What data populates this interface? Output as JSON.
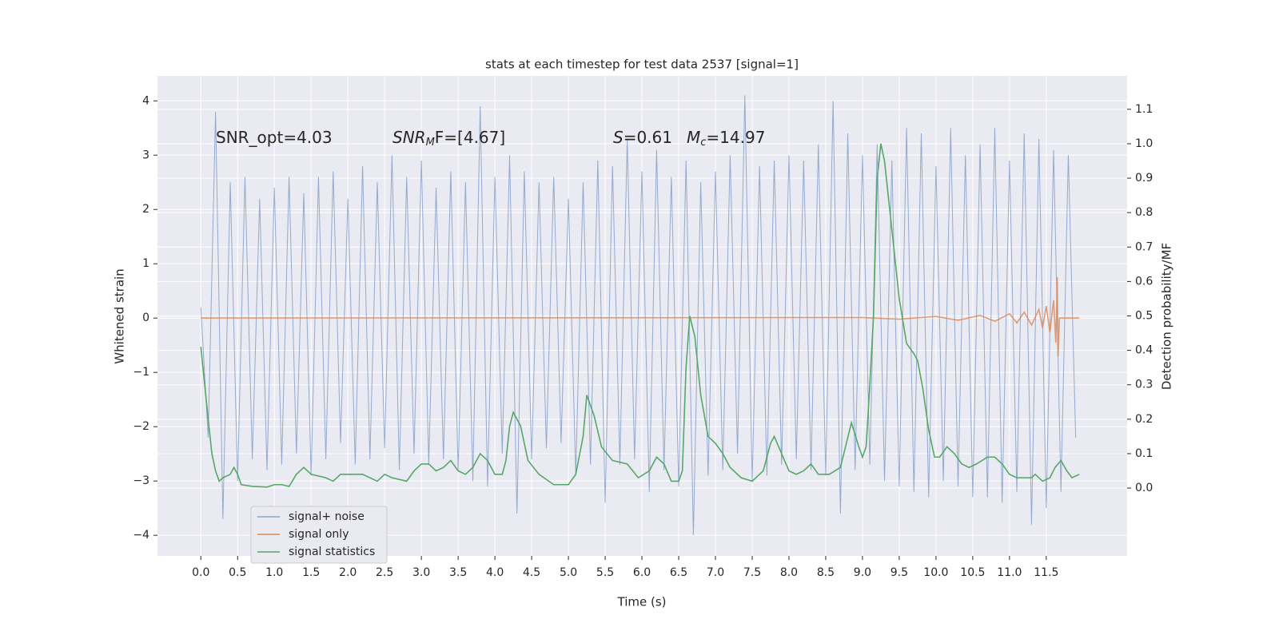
{
  "chart_data": {
    "type": "line",
    "title": "stats at each timestep for test data 2537 [signal=1]",
    "xlabel": "Time (s)",
    "ylabel": "Whitened strain",
    "y2label": "Detection probability/MF",
    "annotations": [
      {
        "text": "SNR_opt=4.03"
      },
      {
        "main": "SNR",
        "sub": "M",
        "rest": "F=[4.67]"
      },
      {
        "main": "S",
        "rest": "=0.61"
      },
      {
        "main": "M",
        "sub": "c",
        "rest": "=14.97"
      }
    ],
    "xlim": [
      -0.59,
      12.6
    ],
    "ylim": [
      -4.38,
      4.46
    ],
    "y2lim": [
      -0.197,
      1.197
    ],
    "xticks": [
      {
        "value": 0,
        "label": "0.0"
      },
      0.5,
      {
        "value": 1,
        "label": "1.0"
      },
      1.5,
      {
        "value": 2,
        "label": "2.0"
      },
      2.5,
      {
        "value": 3,
        "label": "3.0"
      },
      3.5,
      {
        "value": 4,
        "label": "4.0"
      },
      4.5,
      {
        "value": 5,
        "label": "5.0"
      },
      5.5,
      {
        "value": 6,
        "label": "6.0"
      },
      6.5,
      {
        "value": 7,
        "label": "7.0"
      },
      7.5,
      {
        "value": 8,
        "label": "8.0"
      },
      8.5,
      {
        "value": 9,
        "label": "9.0"
      },
      9.5,
      {
        "value": 10,
        "label": "10.0"
      },
      10.5,
      {
        "value": 11,
        "label": "11.0"
      },
      11.5
    ],
    "yticks": [
      {
        "value": -4,
        "label": "−4"
      },
      {
        "value": -3,
        "label": "−3"
      },
      {
        "value": -2,
        "label": "−2"
      },
      {
        "value": -1,
        "label": "−1"
      },
      0,
      1,
      2,
      3,
      4
    ],
    "y2ticks": [
      {
        "value": 0,
        "label": "0.0"
      },
      0.1,
      0.2,
      0.3,
      0.4,
      0.5,
      0.6,
      0.7,
      0.8,
      0.9,
      {
        "value": 1,
        "label": "1.0"
      },
      1.1
    ],
    "grid": true,
    "legend": "lower left",
    "series": [
      {
        "name": "signal+ noise",
        "color": "#4c72b0",
        "x": [
          0,
          0.1,
          0.2,
          0.3,
          0.4,
          0.5,
          0.6,
          0.7,
          0.8,
          0.9,
          1,
          1.1,
          1.2,
          1.3,
          1.4,
          1.5,
          1.6,
          1.7,
          1.8,
          1.9,
          2,
          2.1,
          2.2,
          2.3,
          2.4,
          2.5,
          2.6,
          2.7,
          2.8,
          2.9,
          3,
          3.1,
          3.2,
          3.3,
          3.4,
          3.5,
          3.6,
          3.7,
          3.8,
          3.9,
          4,
          4.1,
          4.2,
          4.3,
          4.4,
          4.5,
          4.6,
          4.7,
          4.8,
          4.9,
          5,
          5.1,
          5.2,
          5.3,
          5.4,
          5.5,
          5.6,
          5.7,
          5.8,
          5.9,
          6,
          6.1,
          6.2,
          6.3,
          6.4,
          6.5,
          6.6,
          6.7,
          6.8,
          6.9,
          7,
          7.1,
          7.2,
          7.3,
          7.4,
          7.5,
          7.6,
          7.7,
          7.8,
          7.9,
          8,
          8.1,
          8.2,
          8.3,
          8.4,
          8.5,
          8.6,
          8.7,
          8.8,
          8.9,
          9,
          9.1,
          9.2,
          9.3,
          9.4,
          9.5,
          9.6,
          9.7,
          9.8,
          9.9,
          10,
          10.1,
          10.2,
          10.3,
          10.4,
          10.5,
          10.6,
          10.7,
          10.8,
          10.9,
          11,
          11.1,
          11.2,
          11.3,
          11.4,
          11.5,
          11.6,
          11.7,
          11.8,
          11.9
        ],
        "values": [
          0.2,
          -2.2,
          3.8,
          -3.7,
          2.5,
          -3.0,
          2.6,
          -2.6,
          2.2,
          -2.8,
          2.4,
          -2.7,
          2.6,
          -2.5,
          2.3,
          -2.9,
          2.6,
          -2.6,
          2.7,
          -2.3,
          2.2,
          -2.7,
          2.8,
          -2.6,
          2.5,
          -2.4,
          3.0,
          -2.8,
          2.6,
          -2.5,
          2.9,
          -2.7,
          2.4,
          -2.6,
          2.7,
          -2.8,
          2.5,
          -3.0,
          3.9,
          -3.1,
          2.6,
          -2.5,
          3.0,
          -3.6,
          2.7,
          -2.6,
          2.5,
          -2.4,
          2.6,
          -2.3,
          2.2,
          -2.9,
          2.5,
          -2.7,
          2.9,
          -3.4,
          2.8,
          -2.7,
          3.3,
          -2.6,
          2.7,
          -3.2,
          3.1,
          -2.8,
          2.6,
          -3.1,
          2.9,
          -4.0,
          2.5,
          -2.9,
          2.7,
          -2.8,
          3.0,
          -2.5,
          4.1,
          -3.0,
          2.8,
          -2.9,
          2.9,
          -2.7,
          3.0,
          -2.6,
          2.9,
          -2.8,
          3.2,
          -2.9,
          4.0,
          -3.6,
          3.4,
          -2.8,
          3.0,
          -2.7,
          3.2,
          -3.0,
          2.9,
          -3.1,
          3.5,
          -3.2,
          3.4,
          -3.3,
          2.8,
          -3.0,
          3.5,
          -3.1,
          3.0,
          -3.3,
          3.2,
          -3.3,
          3.5,
          -3.4,
          2.9,
          -3.2,
          3.4,
          -3.8,
          3.3,
          -3.5,
          3.1,
          -3.2,
          3.0,
          -2.2
        ]
      },
      {
        "name": "signal only",
        "color": "#dd8452",
        "x": [
          0,
          9.0,
          9.5,
          10.0,
          10.3,
          10.6,
          10.8,
          11.0,
          11.1,
          11.2,
          11.3,
          11.4,
          11.45,
          11.5,
          11.55,
          11.6,
          11.63,
          11.65,
          11.66,
          11.68,
          11.95
        ],
        "values": [
          0,
          0.01,
          -0.02,
          0.03,
          -0.04,
          0.05,
          -0.06,
          0.08,
          -0.09,
          0.11,
          -0.13,
          0.16,
          -0.18,
          0.22,
          -0.26,
          0.33,
          -0.45,
          0.75,
          -0.7,
          0,
          0
        ]
      },
      {
        "name": "signal statistics",
        "color": "#55a868",
        "axis": "y2",
        "x": [
          0,
          0.1,
          0.15,
          0.2,
          0.25,
          0.3,
          0.4,
          0.45,
          0.5,
          0.55,
          0.7,
          0.9,
          1.0,
          1.1,
          1.2,
          1.3,
          1.4,
          1.5,
          1.7,
          1.8,
          1.9,
          2.0,
          2.2,
          2.4,
          2.5,
          2.6,
          2.8,
          2.9,
          3.0,
          3.1,
          3.2,
          3.3,
          3.4,
          3.5,
          3.6,
          3.7,
          3.8,
          3.9,
          4.0,
          4.1,
          4.15,
          4.2,
          4.25,
          4.35,
          4.45,
          4.6,
          4.8,
          5.0,
          5.1,
          5.2,
          5.25,
          5.35,
          5.45,
          5.6,
          5.8,
          5.95,
          6.1,
          6.2,
          6.3,
          6.4,
          6.5,
          6.55,
          6.6,
          6.65,
          6.72,
          6.8,
          6.9,
          7.0,
          7.1,
          7.2,
          7.35,
          7.5,
          7.65,
          7.75,
          7.8,
          7.9,
          8.0,
          8.1,
          8.2,
          8.3,
          8.4,
          8.55,
          8.7,
          8.85,
          8.95,
          9.0,
          9.05,
          9.1,
          9.15,
          9.2,
          9.25,
          9.3,
          9.4,
          9.5,
          9.6,
          9.7,
          9.75,
          9.82,
          9.9,
          9.98,
          10.05,
          10.15,
          10.25,
          10.35,
          10.45,
          10.55,
          10.7,
          10.8,
          10.9,
          11.0,
          11.1,
          11.2,
          11.3,
          11.35,
          11.45,
          11.55,
          11.62,
          11.7,
          11.78,
          11.85,
          11.95
        ],
        "values": [
          0.41,
          0.2,
          0.1,
          0.05,
          0.02,
          0.03,
          0.04,
          0.06,
          0.04,
          0.01,
          0.005,
          0.003,
          0.01,
          0.01,
          0.005,
          0.04,
          0.06,
          0.04,
          0.03,
          0.02,
          0.04,
          0.04,
          0.04,
          0.02,
          0.04,
          0.03,
          0.02,
          0.05,
          0.07,
          0.07,
          0.05,
          0.06,
          0.08,
          0.05,
          0.04,
          0.06,
          0.1,
          0.08,
          0.04,
          0.04,
          0.08,
          0.18,
          0.22,
          0.18,
          0.08,
          0.04,
          0.01,
          0.01,
          0.04,
          0.15,
          0.27,
          0.21,
          0.12,
          0.08,
          0.07,
          0.03,
          0.05,
          0.09,
          0.07,
          0.02,
          0.02,
          0.05,
          0.35,
          0.5,
          0.44,
          0.27,
          0.15,
          0.13,
          0.1,
          0.06,
          0.03,
          0.02,
          0.05,
          0.13,
          0.15,
          0.1,
          0.05,
          0.04,
          0.05,
          0.07,
          0.04,
          0.04,
          0.06,
          0.19,
          0.12,
          0.09,
          0.12,
          0.3,
          0.5,
          0.9,
          1.0,
          0.95,
          0.75,
          0.55,
          0.42,
          0.39,
          0.37,
          0.29,
          0.17,
          0.09,
          0.09,
          0.12,
          0.1,
          0.07,
          0.06,
          0.07,
          0.09,
          0.09,
          0.07,
          0.04,
          0.03,
          0.03,
          0.03,
          0.04,
          0.02,
          0.03,
          0.06,
          0.08,
          0.05,
          0.03,
          0.04
        ]
      }
    ]
  }
}
